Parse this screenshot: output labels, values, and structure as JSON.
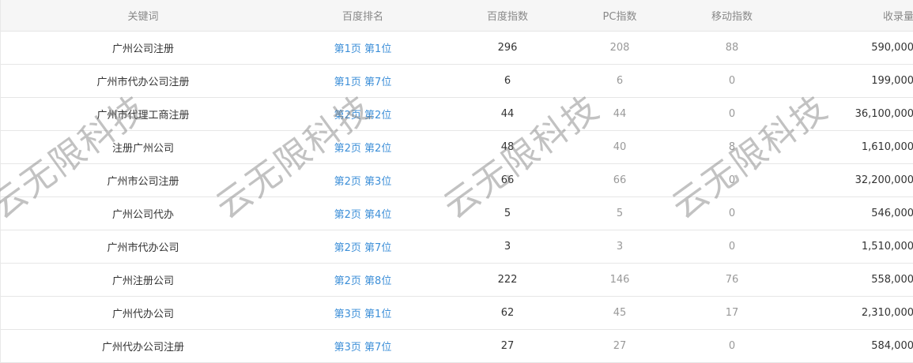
{
  "headers": [
    "关键词",
    "百度排名",
    "百度指数",
    "PC指数",
    "移动指数",
    "收录量"
  ],
  "rows": [
    {
      "keyword": "广州公司注册",
      "rank": "第1页 第1位",
      "baidu": "296",
      "pc": "208",
      "mobile": "88",
      "count": "590,000"
    },
    {
      "keyword": "广州市代办公司注册",
      "rank": "第1页 第7位",
      "baidu": "6",
      "pc": "6",
      "mobile": "0",
      "count": "199,000"
    },
    {
      "keyword": "广州市代理工商注册",
      "rank": "第2页 第2位",
      "baidu": "44",
      "pc": "44",
      "mobile": "0",
      "count": "36,100,000"
    },
    {
      "keyword": "注册广州公司",
      "rank": "第2页 第2位",
      "baidu": "48",
      "pc": "40",
      "mobile": "8",
      "count": "1,610,000"
    },
    {
      "keyword": "广州市公司注册",
      "rank": "第2页 第3位",
      "baidu": "66",
      "pc": "66",
      "mobile": "0",
      "count": "32,200,000"
    },
    {
      "keyword": "广州公司代办",
      "rank": "第2页 第4位",
      "baidu": "5",
      "pc": "5",
      "mobile": "0",
      "count": "546,000"
    },
    {
      "keyword": "广州市代办公司",
      "rank": "第2页 第7位",
      "baidu": "3",
      "pc": "3",
      "mobile": "0",
      "count": "1,510,000"
    },
    {
      "keyword": "广州注册公司",
      "rank": "第2页 第8位",
      "baidu": "222",
      "pc": "146",
      "mobile": "76",
      "count": "558,000"
    },
    {
      "keyword": "广州代办公司",
      "rank": "第3页 第1位",
      "baidu": "62",
      "pc": "45",
      "mobile": "17",
      "count": "2,310,000"
    },
    {
      "keyword": "广州代办公司注册",
      "rank": "第3页 第7位",
      "baidu": "27",
      "pc": "27",
      "mobile": "0",
      "count": "584,000"
    }
  ],
  "watermark": "云无限科技",
  "colors": {
    "link": "#3d8fd8",
    "header_bg": "#f6f6f6"
  }
}
